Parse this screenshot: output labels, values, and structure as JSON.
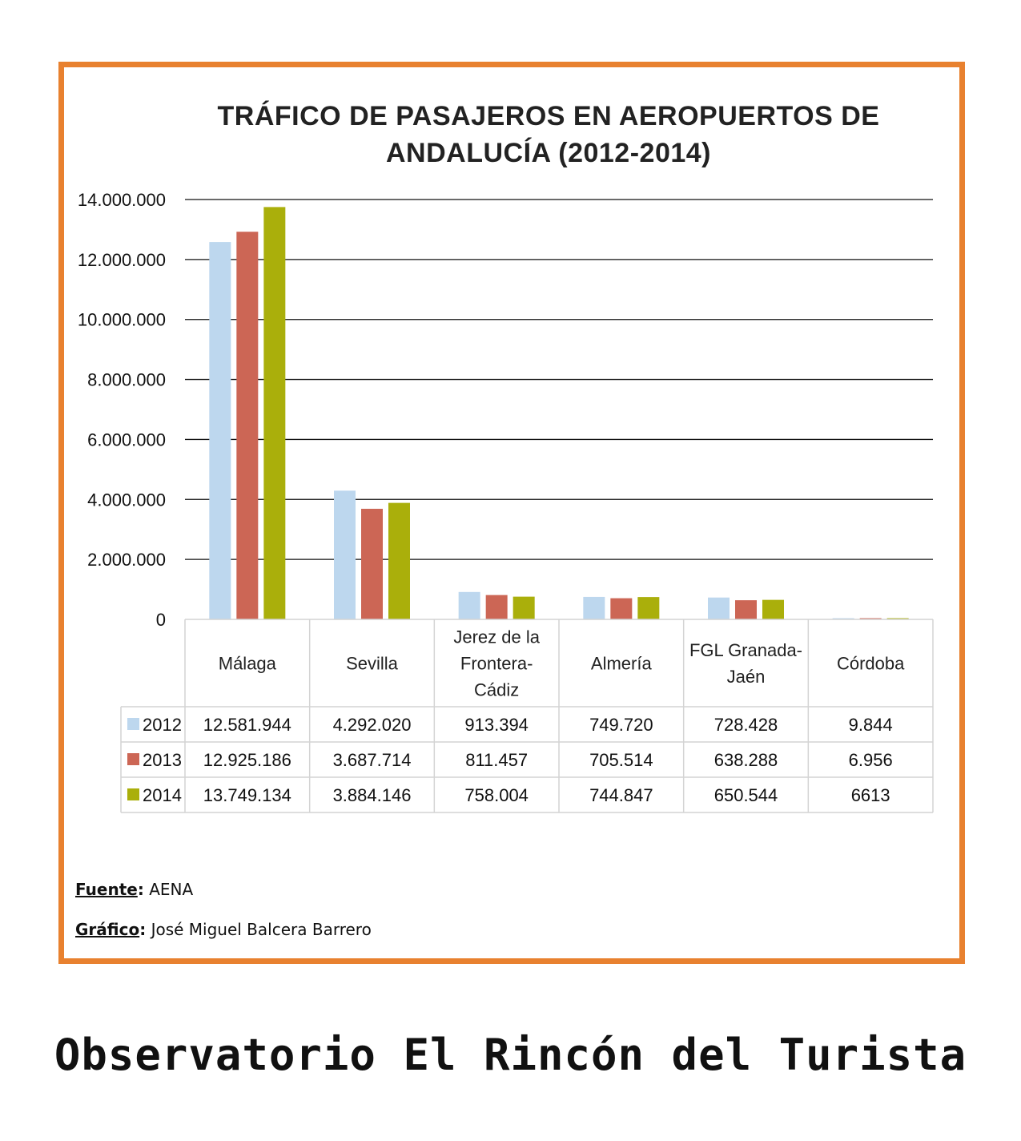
{
  "chart_data": {
    "type": "bar",
    "title": "TRÁFICO DE PASAJEROS EN AEROPUERTOS DE\nANDALUCÍA (2012-2014)",
    "categories": [
      "Málaga",
      "Sevilla",
      "Jerez de la\nFrontera-\nCádiz",
      "Almería",
      "FGL Granada-\nJaén",
      "Córdoba"
    ],
    "series": [
      {
        "name": "2012",
        "color": "#BDD7EE",
        "values": [
          12581944,
          4292020,
          913394,
          749720,
          728428,
          9844
        ],
        "labels": [
          "12.581.944",
          "4.292.020",
          "913.394",
          "749.720",
          "728.428",
          "9.844"
        ]
      },
      {
        "name": "2013",
        "color": "#CC6655",
        "values": [
          12925186,
          3687714,
          811457,
          705514,
          638288,
          6956
        ],
        "labels": [
          "12.925.186",
          "3.687.714",
          "811.457",
          "705.514",
          "638.288",
          "6.956"
        ]
      },
      {
        "name": "2014",
        "color": "#AAAF0B",
        "values": [
          13749134,
          3884146,
          758004,
          744847,
          650544,
          6613
        ],
        "labels": [
          "13.749.134",
          "3.884.146",
          "758.004",
          "744.847",
          "650.544",
          "6613"
        ]
      }
    ],
    "ylim": [
      0,
      14000000
    ],
    "yticks": [
      0,
      2000000,
      4000000,
      6000000,
      8000000,
      10000000,
      12000000,
      14000000
    ],
    "ytick_labels": [
      "0",
      "2.000.000",
      "4.000.000",
      "6.000.000",
      "8.000.000",
      "10.000.000",
      "12.000.000",
      "14.000.000"
    ],
    "grid": true,
    "legend": "data table below chart"
  },
  "credits": {
    "source_key": "Fuente",
    "source_value": "AENA",
    "graphic_key": "Gráfico",
    "graphic_value": "José Miguel Balcera Barrero"
  },
  "footer": {
    "brand": "Observatorio El Rincón del Turista"
  },
  "colors": {
    "frame": "#E8812F"
  }
}
